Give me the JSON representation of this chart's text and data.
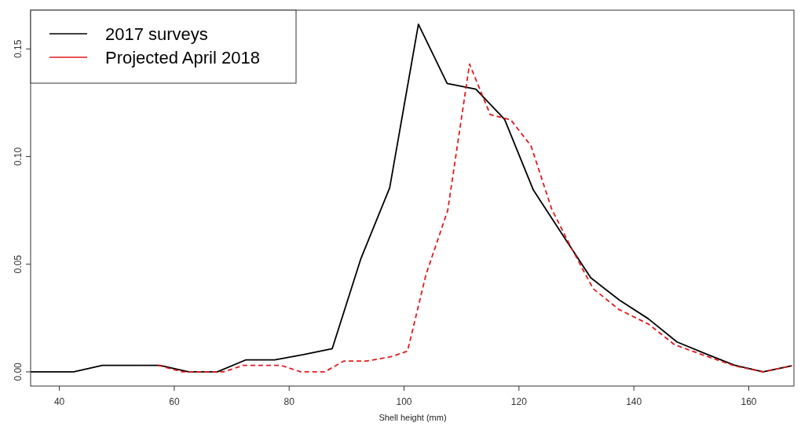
{
  "chart_data": {
    "type": "line",
    "xlabel": "Shell height (mm)",
    "xlim": [
      35,
      168
    ],
    "ylim": [
      -0.0066,
      0.168
    ],
    "xticks": [
      40,
      60,
      80,
      100,
      120,
      140,
      160
    ],
    "yticks": [
      {
        "value": 0,
        "label": "0.00"
      },
      {
        "value": 0.05,
        "label": "0.05"
      },
      {
        "value": 0.1,
        "label": "0.10"
      },
      {
        "value": 0.15,
        "label": "0.15"
      }
    ],
    "grid": false,
    "legend": "top left",
    "series": [
      {
        "name": "2017 surveys",
        "color": "#000000",
        "line_style": "solid",
        "x": [
          35,
          42.5,
          47.5,
          52.5,
          57.5,
          62.5,
          67.5,
          72.5,
          77.5,
          82.5,
          87.5,
          92.5,
          97.5,
          102.5,
          107.5,
          112.5,
          117.5,
          122.5,
          127.5,
          132.5,
          137.5,
          142.5,
          147.5,
          152.5,
          157.5,
          162.5,
          167.5
        ],
        "values": [
          0,
          0,
          0.003,
          0.003,
          0.003,
          0,
          0,
          0.0056,
          0.0056,
          0.008,
          0.0108,
          0.0527,
          0.0855,
          0.1615,
          0.134,
          0.1313,
          0.1173,
          0.0845,
          0.064,
          0.0437,
          0.0333,
          0.0247,
          0.0139,
          0.0084,
          0.0031,
          0,
          0.0028
        ]
      },
      {
        "name": "Projected April 2018",
        "color": "#e31a1c",
        "line_style": "dashed",
        "x": [
          57.2,
          61.4,
          68.6,
          72,
          78.6,
          82,
          86.2,
          89.5,
          93.4,
          97.7,
          100.6,
          103.8,
          107.6,
          111.4,
          115,
          118.6,
          122.1,
          125.7,
          129.1,
          132.9,
          137.4,
          142.6,
          147.1,
          152.4,
          157.5,
          162.5,
          167.5
        ],
        "values": [
          0.003,
          0,
          0,
          0.003,
          0.003,
          0,
          0,
          0.005,
          0.005,
          0.007,
          0.0096,
          0.045,
          0.075,
          0.143,
          0.1195,
          0.117,
          0.105,
          0.0756,
          0.0577,
          0.0387,
          0.029,
          0.0221,
          0.0126,
          0.0075,
          0.0028,
          0,
          0.0028
        ]
      }
    ]
  }
}
